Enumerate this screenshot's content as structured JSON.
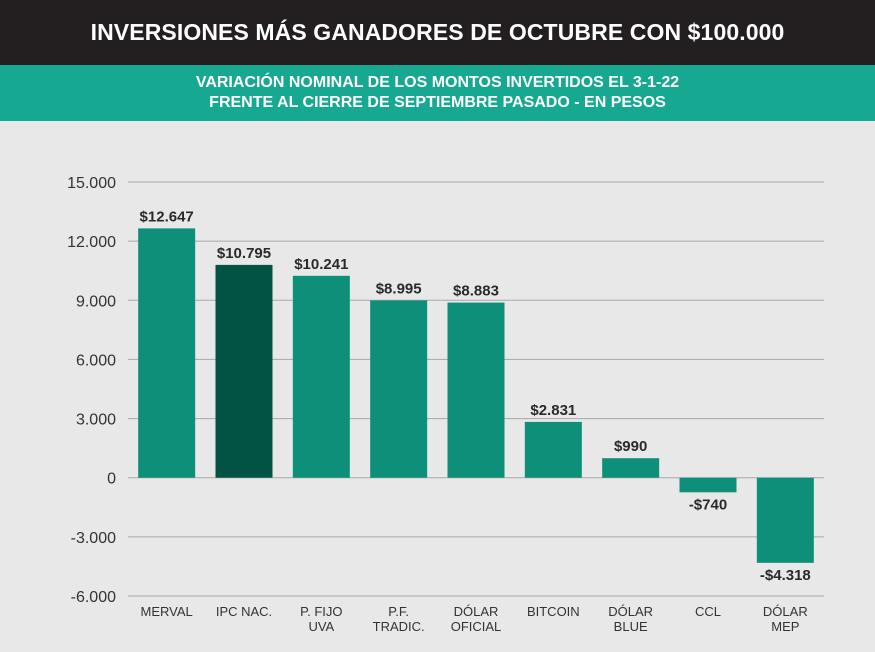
{
  "header": {
    "title": "INVERSIONES MÁS GANADORES DE OCTUBRE CON $100.000"
  },
  "subheader": {
    "line1": "VARIACIÓN NOMINAL DE LOS MONTOS INVERTIDOS EL 3-1-22",
    "line2": "FRENTE AL CIERRE DE SEPTIEMBRE PASADO - EN PESOS"
  },
  "colors": {
    "header_bg": "#231f20",
    "subheader_bg": "#17a891",
    "bar": "#0e8f79",
    "bar_highlight": "#035344",
    "background": "#e8e8e8",
    "grid": "#a9a9a9"
  },
  "chart_data": {
    "type": "bar",
    "categories": [
      [
        "MERVAL"
      ],
      [
        "IPC NAC."
      ],
      [
        "P. FIJO",
        "UVA"
      ],
      [
        "P.F.",
        "TRADIC."
      ],
      [
        "DÓLAR",
        "OFICIAL"
      ],
      [
        "BITCOIN"
      ],
      [
        "DÓLAR",
        "BLUE"
      ],
      [
        "CCL"
      ],
      [
        "DÓLAR",
        "MEP"
      ]
    ],
    "values": [
      12647,
      10795,
      10241,
      8995,
      8883,
      2831,
      990,
      -740,
      -4318
    ],
    "value_labels": [
      "$12.647",
      "$10.795",
      "$10.241",
      "$8.995",
      "$8.883",
      "$2.831",
      "$990",
      "-$740",
      "-$4.318"
    ],
    "highlight_index": 1,
    "yticks": [
      15000,
      12000,
      9000,
      6000,
      3000,
      0,
      -3000,
      -6000
    ],
    "ytick_labels": [
      "15.000",
      "12.000",
      "9.000",
      "6.000",
      "3.000",
      "0",
      "-3.000",
      "-6.000"
    ],
    "ylim": [
      -6000,
      15000
    ],
    "grid": true,
    "legend": false
  }
}
